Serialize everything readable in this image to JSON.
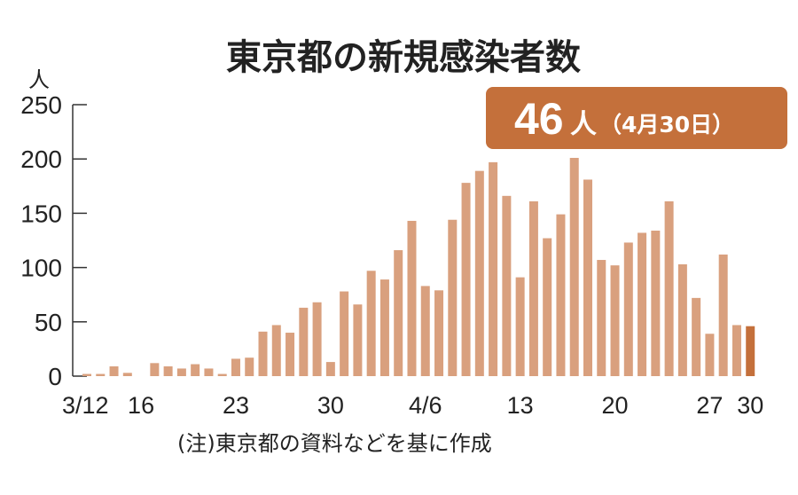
{
  "chart_data": {
    "type": "bar",
    "title": "東京都の新規感染者数",
    "ylabel": "人",
    "ylim": [
      0,
      250
    ],
    "yticks": [
      "0",
      "50",
      "100",
      "150",
      "200",
      "250"
    ],
    "xtick_labels": [
      {
        "date": "3/12",
        "label": "3/12"
      },
      {
        "date": "3/16",
        "label": "16"
      },
      {
        "date": "3/23",
        "label": "23"
      },
      {
        "date": "3/30",
        "label": "30"
      },
      {
        "date": "4/6",
        "label": "4/6"
      },
      {
        "date": "4/13",
        "label": "13"
      },
      {
        "date": "4/20",
        "label": "20"
      },
      {
        "date": "4/27",
        "label": "27"
      },
      {
        "date": "4/30",
        "label": "30"
      }
    ],
    "categories": [
      "3/12",
      "3/13",
      "3/14",
      "3/15",
      "3/16",
      "3/17",
      "3/18",
      "3/19",
      "3/20",
      "3/21",
      "3/22",
      "3/23",
      "3/24",
      "3/25",
      "3/26",
      "3/27",
      "3/28",
      "3/29",
      "3/30",
      "3/31",
      "4/1",
      "4/2",
      "4/3",
      "4/4",
      "4/5",
      "4/6",
      "4/7",
      "4/8",
      "4/9",
      "4/10",
      "4/11",
      "4/12",
      "4/13",
      "4/14",
      "4/15",
      "4/16",
      "4/17",
      "4/18",
      "4/19",
      "4/20",
      "4/21",
      "4/22",
      "4/23",
      "4/24",
      "4/25",
      "4/26",
      "4/27",
      "4/28",
      "4/29",
      "4/30"
    ],
    "values": [
      2,
      2,
      9,
      3,
      0,
      12,
      9,
      7,
      11,
      7,
      2,
      16,
      17,
      41,
      47,
      40,
      63,
      68,
      13,
      78,
      66,
      97,
      89,
      116,
      143,
      83,
      79,
      144,
      178,
      189,
      197,
      166,
      91,
      161,
      127,
      149,
      201,
      181,
      107,
      102,
      123,
      132,
      134,
      161,
      103,
      72,
      39,
      112,
      47,
      46
    ],
    "bar_color": "#d9a07e",
    "highlight_color": "#c4703b",
    "highlight_index": 49,
    "callout": {
      "value": "46",
      "unit": "人",
      "date": "（4月30日）"
    },
    "note": "(注)東京都の資料などを基に作成",
    "callout_color": "#c4703b"
  }
}
